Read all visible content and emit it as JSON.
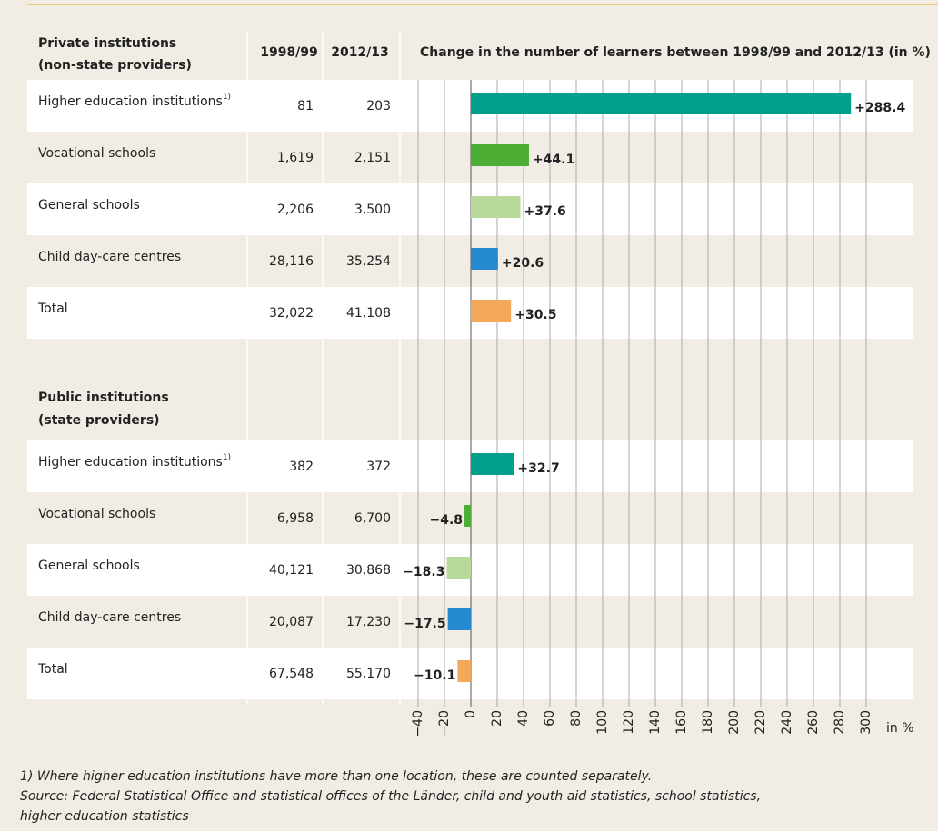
{
  "chart_data": {
    "type": "bar",
    "columns": [
      "1998/99",
      "2012/13"
    ],
    "title": "Change in the number of learners between 1998/99 and 2012/13 (in %)",
    "groups": [
      {
        "title": [
          "Private institutions",
          "(non-state providers)"
        ],
        "rows": [
          {
            "label": "Higher education institutions",
            "note": "1)",
            "cells": [
              "81",
              "203"
            ],
            "value": 288.4,
            "value_label": "+288.4",
            "color": "#00a08c"
          },
          {
            "label": "Vocational schools",
            "cells": [
              "1,619",
              "2,151"
            ],
            "value": 44.1,
            "value_label": "+44.1",
            "color": "#4cae35"
          },
          {
            "label": "General schools",
            "cells": [
              "2,206",
              "3,500"
            ],
            "value": 37.6,
            "value_label": "+37.6",
            "color": "#b9d99b"
          },
          {
            "label": "Child day-care centres",
            "cells": [
              "28,116",
              "35,254"
            ],
            "value": 20.6,
            "value_label": "+20.6",
            "color": "#2489cf"
          },
          {
            "label": "Total",
            "cells": [
              "32,022",
              "41,108"
            ],
            "value": 30.5,
            "value_label": "+30.5",
            "color": "#f4a95a"
          }
        ]
      },
      {
        "title": [
          "Public institutions",
          "(state providers)"
        ],
        "rows": [
          {
            "label": "Higher education institutions",
            "note": "1)",
            "cells": [
              "382",
              "372"
            ],
            "value": 32.7,
            "value_label": "+32.7",
            "color": "#00a08c"
          },
          {
            "label": "Vocational schools",
            "cells": [
              "6,958",
              "6,700"
            ],
            "value": -4.8,
            "value_label": "−4.8",
            "color": "#4cae35"
          },
          {
            "label": "General schools",
            "cells": [
              "40,121",
              "30,868"
            ],
            "value": -18.3,
            "value_label": "−18.3",
            "color": "#b9d99b"
          },
          {
            "label": "Child day-care centres",
            "cells": [
              "20,087",
              "17,230"
            ],
            "value": -17.5,
            "value_label": "−17.5",
            "color": "#2489cf"
          },
          {
            "label": "Total",
            "cells": [
              "67,548",
              "55,170"
            ],
            "value": -10.1,
            "value_label": "−10.1",
            "color": "#f4a95a"
          }
        ]
      }
    ],
    "xlim": [
      -40,
      300
    ],
    "xticks": [
      {
        "value": -40,
        "label": "−40"
      },
      {
        "value": -20,
        "label": "−20"
      },
      0,
      20,
      40,
      60,
      80,
      100,
      120,
      140,
      160,
      180,
      200,
      220,
      240,
      260,
      280,
      300
    ],
    "xlabel": "in %",
    "grid": true,
    "footnotes": [
      "1) Where higher education institutions have more than one location, these are counted separately.",
      "Source: Federal Statistical Office and statistical offices of the Länder, child and youth aid statistics, school statistics,",
      "higher education statistics"
    ]
  }
}
